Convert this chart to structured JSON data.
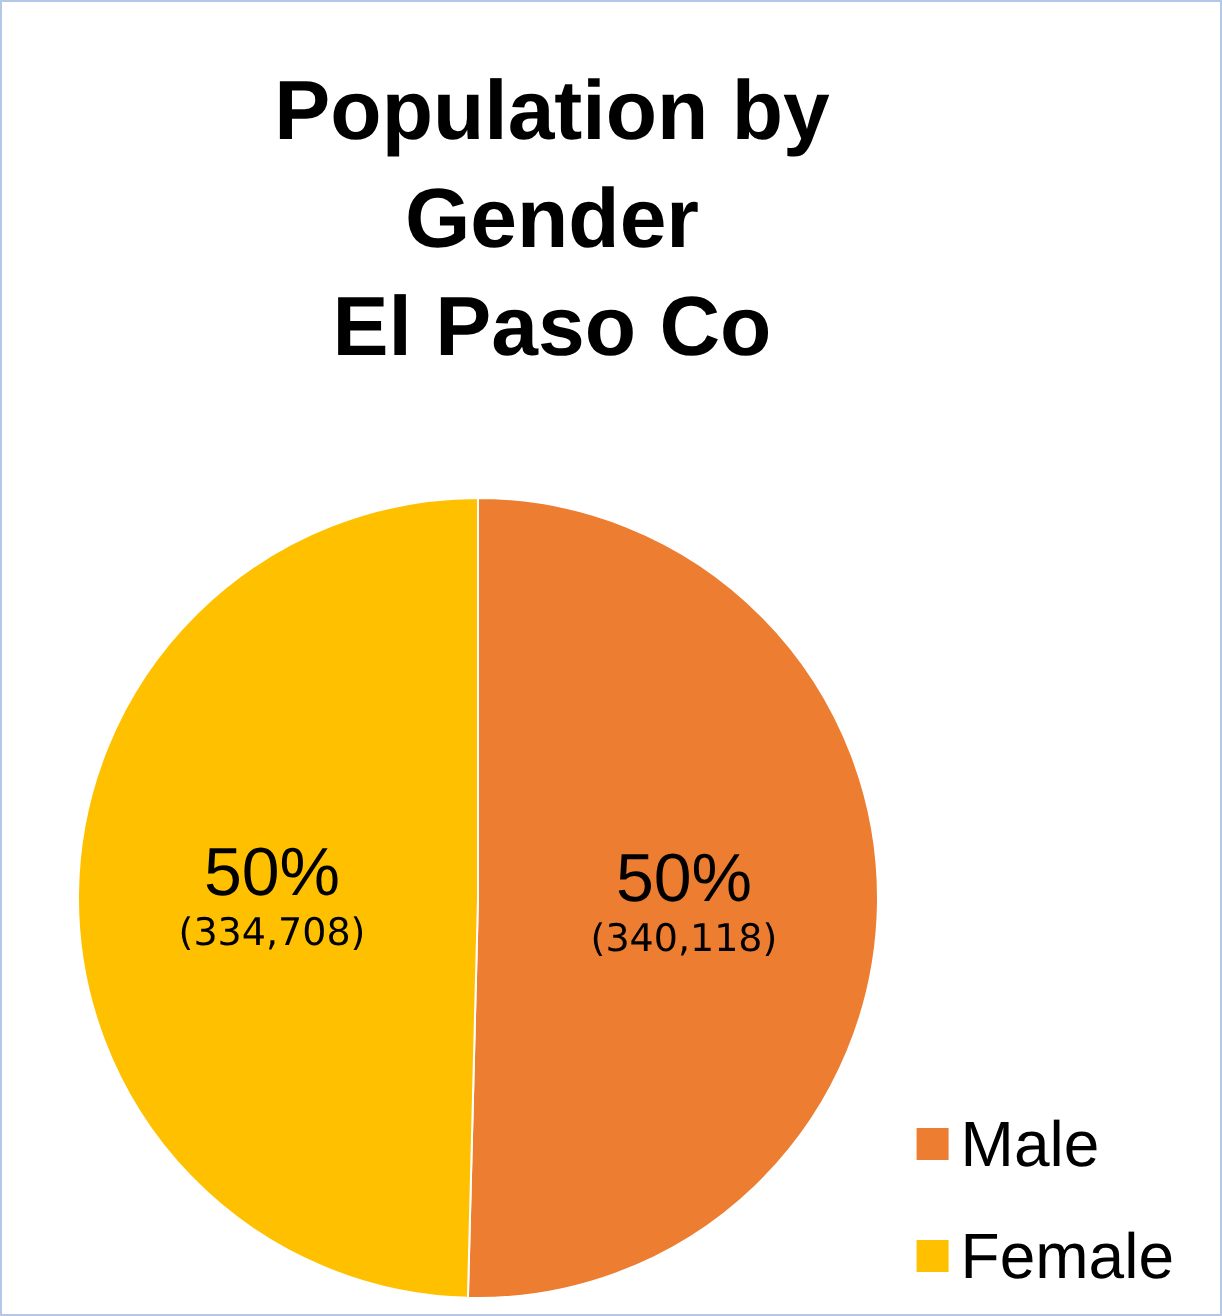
{
  "chart_data": {
    "type": "pie",
    "title": "Population by\nGender\nEl Paso Co",
    "categories": [
      "Male",
      "Female"
    ],
    "values": [
      340118,
      334708
    ],
    "colors": [
      "#ed7d31",
      "#ffc000"
    ],
    "value_labels": [
      "50%\n(340,118)",
      "50%\n(334,708)"
    ],
    "legend": "bottom right"
  }
}
